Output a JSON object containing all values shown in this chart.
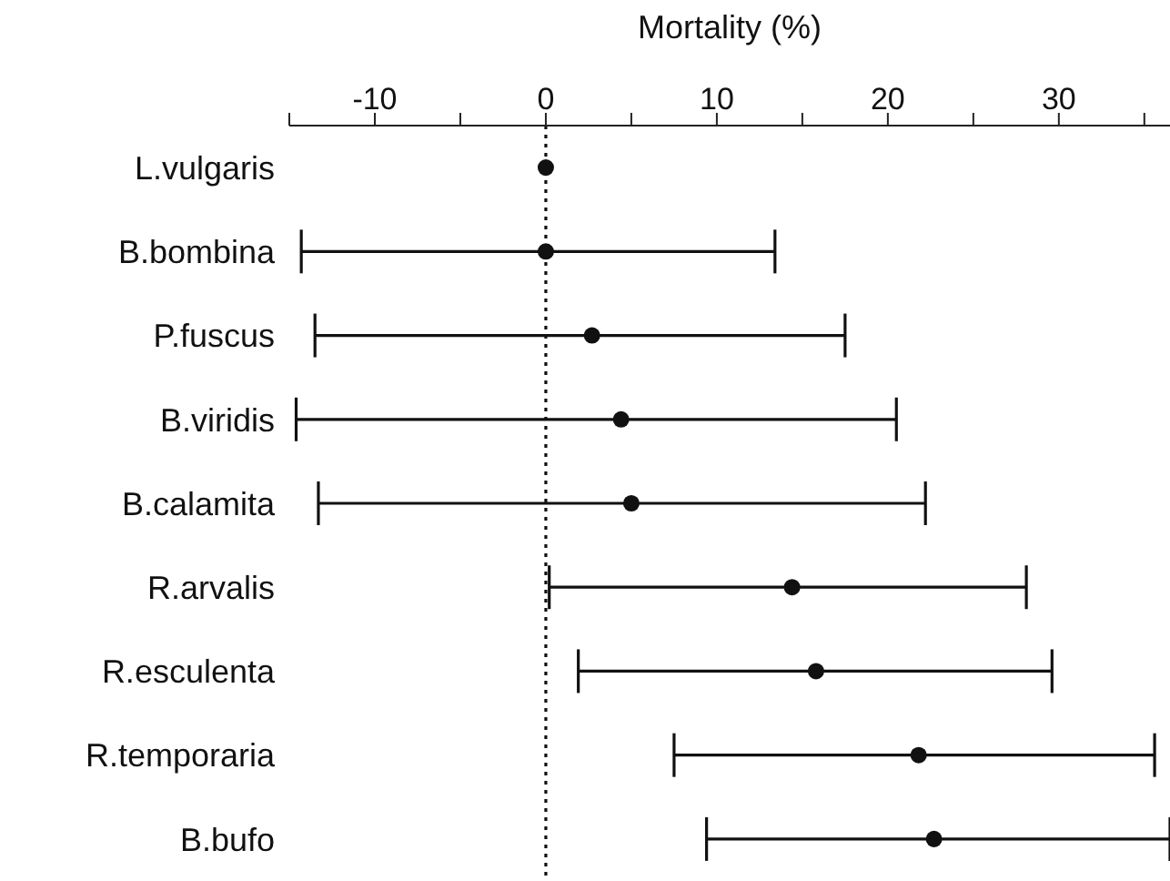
{
  "chart_data": {
    "type": "scatter",
    "orientation": "horizontal",
    "xlabel": "Mortality (%)",
    "categories": [
      "L.vulgaris",
      "B.bombina",
      "P.fuscus",
      "B.viridis",
      "B.calamita",
      "R.arvalis",
      "R.esculenta",
      "R.temporaria",
      "B.bufo"
    ],
    "values": [
      0,
      0,
      2.7,
      4.4,
      5.0,
      14.4,
      15.8,
      21.8,
      22.7
    ],
    "errors": [
      null,
      [
        -14.3,
        13.4
      ],
      [
        -13.5,
        17.5
      ],
      [
        -14.6,
        20.5
      ],
      [
        -13.3,
        22.2
      ],
      [
        0.2,
        28.1
      ],
      [
        1.9,
        29.6
      ],
      [
        7.5,
        35.6
      ],
      [
        9.4,
        36.5
      ]
    ],
    "color": "#111111",
    "marker": "circle",
    "grid": false,
    "legend": false,
    "xlim": [
      -15,
      36.5
    ],
    "xticks": [
      {
        "value": -15,
        "label": null
      },
      -10,
      {
        "value": -5,
        "label": null
      },
      0,
      {
        "value": 5,
        "label": null
      },
      10,
      {
        "value": 15,
        "label": null
      },
      20,
      {
        "value": 25,
        "label": null
      },
      30,
      {
        "value": 35,
        "label": null
      }
    ],
    "ref_lines": [
      {
        "axis": "x",
        "value": 0,
        "line_style": "dotted",
        "color": "#111111"
      }
    ]
  }
}
